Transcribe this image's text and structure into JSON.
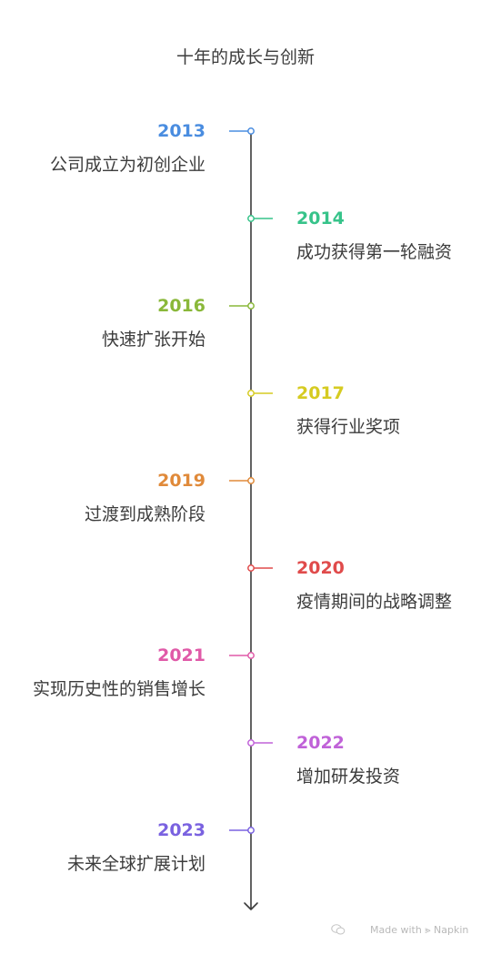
{
  "title": "十年的成长与创新",
  "events": [
    {
      "year": "2013",
      "text": "公司成立为初创企业",
      "side": "left",
      "color": "#4a8de0"
    },
    {
      "year": "2014",
      "text": "成功获得第一轮融资",
      "side": "right",
      "color": "#37c38a"
    },
    {
      "year": "2016",
      "text": "快速扩张开始",
      "side": "left",
      "color": "#8ab83a"
    },
    {
      "year": "2017",
      "text": "获得行业奖项",
      "side": "right",
      "color": "#d6cb22"
    },
    {
      "year": "2019",
      "text": "过渡到成熟阶段",
      "side": "left",
      "color": "#e08a3a"
    },
    {
      "year": "2020",
      "text": "疫情期间的战略调整",
      "side": "right",
      "color": "#e04b4b"
    },
    {
      "year": "2021",
      "text": "实现历史性的销售增长",
      "side": "left",
      "color": "#e05aa8"
    },
    {
      "year": "2022",
      "text": "增加研发投资",
      "side": "right",
      "color": "#c062d8"
    },
    {
      "year": "2023",
      "text": "未来全球扩展计划",
      "side": "left",
      "color": "#7a62e0"
    }
  ],
  "axis_color": "#3c3c3c",
  "watermark": {
    "text": "Made with ⪢ Napkin",
    "icon": "wechat-icon"
  }
}
